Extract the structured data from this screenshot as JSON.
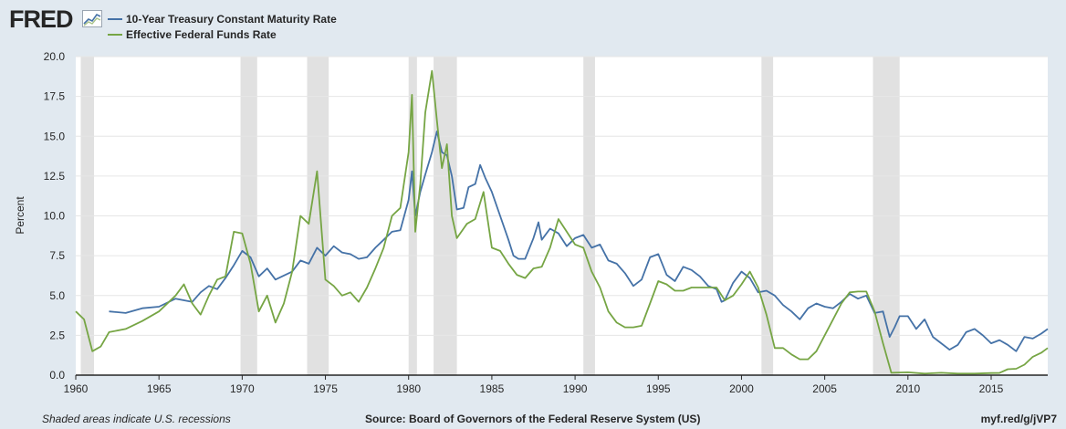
{
  "header": {
    "logo_text": "FRED",
    "logo_icon": "fred-graph-icon"
  },
  "legend": [
    {
      "label": "10-Year Treasury Constant Maturity Rate",
      "color": "#4572a7"
    },
    {
      "label": "Effective Federal Funds Rate",
      "color": "#76a544"
    }
  ],
  "footer": {
    "note": "Shaded areas indicate U.S. recessions",
    "source": "Source: Board of Governors of the Federal Reserve System (US)",
    "url": "myf.red/g/jVP7"
  },
  "chart_data": {
    "type": "line",
    "title": "",
    "xlabel": "",
    "ylabel": "Percent",
    "xlim": [
      1960,
      2018.4
    ],
    "ylim": [
      0,
      20
    ],
    "grid": true,
    "legend_position": "top-left",
    "yticks": [
      "0.0",
      "2.5",
      "5.0",
      "7.5",
      "10.0",
      "12.5",
      "15.0",
      "17.5",
      "20.0"
    ],
    "xticks": [
      "1960",
      "1965",
      "1970",
      "1975",
      "1980",
      "1985",
      "1990",
      "1995",
      "2000",
      "2005",
      "2010",
      "2015"
    ],
    "recessions": [
      [
        1960.3,
        1961.1
      ],
      [
        1969.9,
        1970.9
      ],
      [
        1973.9,
        1975.2
      ],
      [
        1980.0,
        1980.5
      ],
      [
        1981.5,
        1982.9
      ],
      [
        1990.5,
        1991.2
      ],
      [
        2001.2,
        2001.9
      ],
      [
        2007.9,
        2009.5
      ]
    ],
    "series": [
      {
        "name": "10-Year Treasury Constant Maturity Rate",
        "color": "#4572a7",
        "x": [
          1962.0,
          1963.0,
          1964.0,
          1965.0,
          1966.0,
          1967.0,
          1967.5,
          1968.0,
          1968.5,
          1969.0,
          1969.5,
          1970.0,
          1970.5,
          1971.0,
          1971.5,
          1972.0,
          1973.0,
          1973.5,
          1974.0,
          1974.5,
          1975.0,
          1975.5,
          1976.0,
          1976.5,
          1977.0,
          1977.5,
          1978.0,
          1978.5,
          1979.0,
          1979.5,
          1980.0,
          1980.2,
          1980.4,
          1980.7,
          1981.0,
          1981.4,
          1981.7,
          1982.0,
          1982.3,
          1982.6,
          1982.9,
          1983.3,
          1983.6,
          1984.0,
          1984.3,
          1984.6,
          1985.0,
          1985.5,
          1986.0,
          1986.3,
          1986.6,
          1987.0,
          1987.5,
          1987.8,
          1988.0,
          1988.5,
          1989.0,
          1989.5,
          1990.0,
          1990.5,
          1991.0,
          1991.5,
          1992.0,
          1992.5,
          1993.0,
          1993.5,
          1994.0,
          1994.5,
          1995.0,
          1995.5,
          1996.0,
          1996.5,
          1997.0,
          1997.5,
          1998.0,
          1998.5,
          1998.8,
          1999.0,
          1999.5,
          2000.0,
          2000.5,
          2001.0,
          2001.5,
          2002.0,
          2002.5,
          2003.0,
          2003.5,
          2004.0,
          2004.5,
          2005.0,
          2005.5,
          2006.0,
          2006.5,
          2007.0,
          2007.5,
          2008.0,
          2008.5,
          2008.9,
          2009.2,
          2009.5,
          2010.0,
          2010.5,
          2011.0,
          2011.5,
          2012.0,
          2012.5,
          2013.0,
          2013.5,
          2014.0,
          2014.5,
          2015.0,
          2015.5,
          2016.0,
          2016.5,
          2017.0,
          2017.5,
          2018.0,
          2018.4
        ],
        "y": [
          4.0,
          3.9,
          4.2,
          4.3,
          4.8,
          4.6,
          5.2,
          5.6,
          5.4,
          6.1,
          6.9,
          7.8,
          7.4,
          6.2,
          6.7,
          6.0,
          6.5,
          7.2,
          7.0,
          8.0,
          7.5,
          8.1,
          7.7,
          7.6,
          7.3,
          7.4,
          8.0,
          8.5,
          9.0,
          9.1,
          11.0,
          12.8,
          10.0,
          11.5,
          12.6,
          14.0,
          15.3,
          14.0,
          13.8,
          12.5,
          10.4,
          10.5,
          11.8,
          12.0,
          13.2,
          12.4,
          11.5,
          10.0,
          8.5,
          7.5,
          7.3,
          7.3,
          8.6,
          9.6,
          8.5,
          9.2,
          8.9,
          8.1,
          8.6,
          8.8,
          8.0,
          8.2,
          7.2,
          7.0,
          6.4,
          5.6,
          6.0,
          7.4,
          7.6,
          6.3,
          5.9,
          6.8,
          6.6,
          6.2,
          5.6,
          5.4,
          4.6,
          4.7,
          5.8,
          6.5,
          6.1,
          5.2,
          5.3,
          5.0,
          4.4,
          4.0,
          3.5,
          4.2,
          4.5,
          4.3,
          4.2,
          4.6,
          5.1,
          4.8,
          5.0,
          3.9,
          4.0,
          2.4,
          3.0,
          3.7,
          3.7,
          2.9,
          3.5,
          2.4,
          2.0,
          1.6,
          1.9,
          2.7,
          2.9,
          2.5,
          2.0,
          2.2,
          1.9,
          1.5,
          2.4,
          2.3,
          2.6,
          2.9
        ]
      },
      {
        "name": "Effective Federal Funds Rate",
        "color": "#76a544",
        "x": [
          1960.0,
          1960.5,
          1961.0,
          1961.5,
          1962.0,
          1963.0,
          1964.0,
          1965.0,
          1966.0,
          1966.5,
          1967.0,
          1967.5,
          1968.0,
          1968.5,
          1969.0,
          1969.5,
          1970.0,
          1970.5,
          1971.0,
          1971.5,
          1972.0,
          1972.5,
          1973.0,
          1973.5,
          1974.0,
          1974.5,
          1975.0,
          1975.5,
          1976.0,
          1976.5,
          1977.0,
          1977.5,
          1978.0,
          1978.5,
          1979.0,
          1979.5,
          1980.0,
          1980.2,
          1980.4,
          1980.7,
          1981.0,
          1981.4,
          1981.7,
          1982.0,
          1982.3,
          1982.6,
          1982.9,
          1983.5,
          1984.0,
          1984.5,
          1985.0,
          1985.5,
          1986.0,
          1986.5,
          1987.0,
          1987.5,
          1988.0,
          1988.5,
          1989.0,
          1989.5,
          1990.0,
          1990.5,
          1991.0,
          1991.5,
          1992.0,
          1992.5,
          1993.0,
          1993.5,
          1994.0,
          1994.5,
          1995.0,
          1995.5,
          1996.0,
          1996.5,
          1997.0,
          1997.5,
          1998.0,
          1998.5,
          1999.0,
          1999.5,
          2000.0,
          2000.5,
          2001.0,
          2001.5,
          2002.0,
          2002.5,
          2003.0,
          2003.5,
          2004.0,
          2004.5,
          2005.0,
          2005.5,
          2006.0,
          2006.5,
          2007.0,
          2007.5,
          2008.0,
          2008.5,
          2009.0,
          2010.0,
          2011.0,
          2012.0,
          2013.0,
          2014.0,
          2015.0,
          2015.5,
          2016.0,
          2016.5,
          2017.0,
          2017.5,
          2018.0,
          2018.4
        ],
        "y": [
          4.0,
          3.5,
          1.5,
          1.8,
          2.7,
          2.9,
          3.4,
          4.0,
          5.0,
          5.7,
          4.5,
          3.8,
          5.0,
          6.0,
          6.2,
          9.0,
          8.9,
          7.0,
          4.0,
          5.0,
          3.3,
          4.5,
          6.5,
          10.0,
          9.5,
          12.8,
          6.0,
          5.6,
          5.0,
          5.2,
          4.6,
          5.5,
          6.7,
          8.0,
          10.0,
          10.5,
          14.0,
          17.6,
          9.0,
          12.0,
          16.5,
          19.1,
          16.0,
          13.0,
          14.5,
          10.0,
          8.6,
          9.5,
          9.8,
          11.5,
          8.0,
          7.8,
          7.0,
          6.3,
          6.1,
          6.7,
          6.8,
          8.0,
          9.8,
          9.0,
          8.2,
          8.0,
          6.5,
          5.5,
          4.0,
          3.3,
          3.0,
          3.0,
          3.1,
          4.5,
          5.9,
          5.7,
          5.3,
          5.3,
          5.5,
          5.5,
          5.5,
          5.5,
          4.7,
          5.0,
          5.7,
          6.5,
          5.5,
          3.8,
          1.7,
          1.7,
          1.3,
          1.0,
          1.0,
          1.5,
          2.5,
          3.5,
          4.5,
          5.2,
          5.25,
          5.25,
          4.0,
          2.0,
          0.15,
          0.18,
          0.1,
          0.15,
          0.1,
          0.1,
          0.13,
          0.14,
          0.37,
          0.4,
          0.66,
          1.15,
          1.4,
          1.7
        ]
      }
    ]
  }
}
